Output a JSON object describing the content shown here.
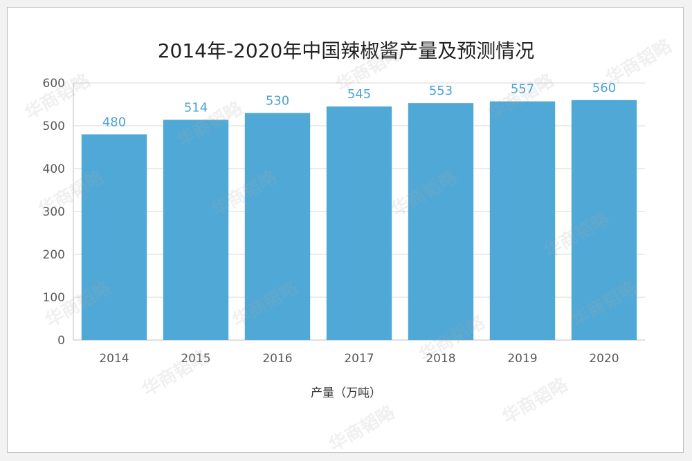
{
  "watermark_text": "华商韬略",
  "colors": {
    "bar": "#4fa8d6",
    "label": "#4aa3d4",
    "grid": "#d9d9d9",
    "axis": "#bfbfbf"
  },
  "chart_data": {
    "type": "bar",
    "title": "2014年-2020年中国辣椒酱产量及预测情况",
    "xlabel": "产量（万吨）",
    "ylabel": "",
    "categories": [
      "2014",
      "2015",
      "2016",
      "2017",
      "2018",
      "2019",
      "2020"
    ],
    "values": [
      480,
      514,
      530,
      545,
      553,
      557,
      560
    ],
    "ylim": [
      0,
      600
    ],
    "yticks": [
      0,
      100,
      200,
      300,
      400,
      500,
      600
    ],
    "grid": true,
    "data_labels": true
  }
}
